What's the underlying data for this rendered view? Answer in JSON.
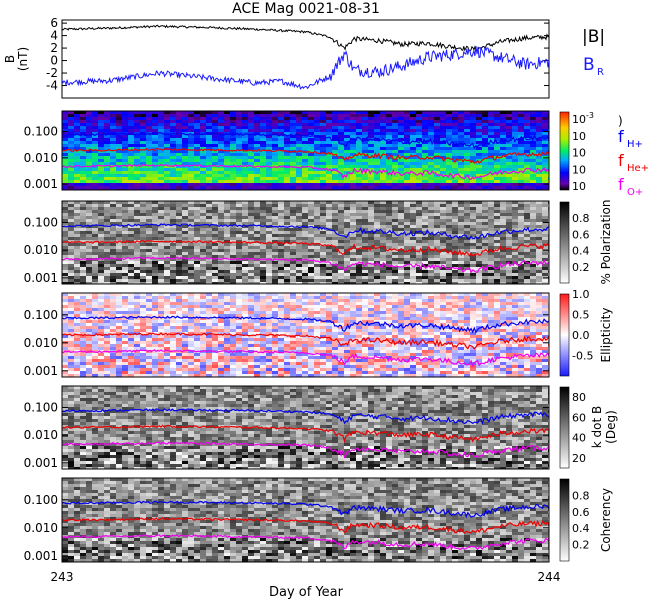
{
  "title": "ACE Mag 0021-08-31",
  "xlabel": "Day of Year",
  "x_ticks": [
    "243",
    "244"
  ],
  "x_range": [
    243,
    244
  ],
  "colors": {
    "total_field": "#000000",
    "radial_field": "#1a1aff",
    "f_h": "#0000ee",
    "f_he": "#ee0000",
    "f_o": "#ee00ee",
    "spectrogram_cmap": "rainbow",
    "parameter_cmap": "grayscale",
    "ellipticity_cmap": "blue-white-red"
  },
  "legend": {
    "b_total": "|B|",
    "b_r_main": "B",
    "b_r_sub": "R",
    "f_h_main": "f",
    "f_h_sub": "H+",
    "f_he_main": "f",
    "f_he_sub": "He+",
    "f_o_main": "f",
    "f_o_sub": "O+"
  },
  "chart_data": [
    {
      "type": "line",
      "panel": "magnetic-field",
      "ylabel": "B",
      "yunit": "(nT)",
      "y_ticks": [
        "6",
        "4",
        "2",
        "0",
        "-2",
        "-4"
      ],
      "ylim": [
        -6,
        6.5
      ],
      "x_range": [
        243,
        244
      ],
      "series": [
        {
          "name": "|B|",
          "x": [
            243.0,
            243.1,
            243.2,
            243.3,
            243.4,
            243.5,
            243.55,
            243.58,
            243.6,
            243.65,
            243.7,
            243.75,
            243.8,
            243.85,
            243.9,
            243.95,
            244.0
          ],
          "values": [
            5.0,
            5.2,
            5.5,
            5.3,
            5.0,
            4.6,
            3.8,
            2.0,
            3.5,
            3.2,
            2.6,
            2.8,
            2.2,
            1.8,
            3.0,
            3.6,
            3.8
          ]
        },
        {
          "name": "B_R",
          "x": [
            243.0,
            243.1,
            243.2,
            243.3,
            243.4,
            243.45,
            243.5,
            243.55,
            243.58,
            243.6,
            243.65,
            243.7,
            243.75,
            243.8,
            243.85,
            243.9,
            243.95,
            244.0
          ],
          "values": [
            -3.5,
            -3.2,
            -2.0,
            -2.8,
            -3.6,
            -3.3,
            -4.3,
            -2.5,
            1.2,
            -1.5,
            -1.8,
            -0.8,
            0.5,
            1.0,
            1.6,
            0.5,
            -0.6,
            -0.2
          ]
        }
      ]
    },
    {
      "type": "heatmap",
      "panel": "power-spectrum",
      "y_ticks": [
        "0.100",
        "0.010",
        "0.001"
      ],
      "ylim_log": [
        0.0006,
        0.6
      ],
      "colorbar_ticks": [
        "10^-3",
        "10^",
        "10^",
        "10^",
        "10^"
      ]
    },
    {
      "type": "heatmap",
      "panel": "polarization",
      "y_ticks": [
        "0.100",
        "0.010",
        "0.001"
      ],
      "ylim_log": [
        0.0006,
        0.6
      ],
      "colorbar_label": "% Polarization",
      "colorbar_ticks": [
        "0.8",
        "0.6",
        "0.4",
        "0.2"
      ],
      "colorbar_range": [
        0,
        1
      ]
    },
    {
      "type": "heatmap",
      "panel": "ellipticity",
      "y_ticks": [
        "0.100",
        "0.010",
        "0.001"
      ],
      "ylim_log": [
        0.0006,
        0.6
      ],
      "colorbar_label": "Ellipticity",
      "colorbar_ticks": [
        "1.0",
        "0.5",
        "0.0",
        "-0.5"
      ],
      "colorbar_range": [
        -1,
        1
      ]
    },
    {
      "type": "heatmap",
      "panel": "k-dot-b",
      "y_ticks": [
        "0.100",
        "0.010",
        "0.001"
      ],
      "ylim_log": [
        0.0006,
        0.6
      ],
      "colorbar_label": "k dot B",
      "colorbar_unit": "(Deg)",
      "colorbar_ticks": [
        "80",
        "60",
        "40",
        "20"
      ],
      "colorbar_range": [
        10,
        90
      ]
    },
    {
      "type": "heatmap",
      "panel": "coherency",
      "y_ticks": [
        "0.100",
        "0.010",
        "0.001"
      ],
      "ylim_log": [
        0.0006,
        0.6
      ],
      "colorbar_label": "Coherency",
      "colorbar_ticks": [
        "0.8",
        "0.6",
        "0.4",
        "0.2"
      ],
      "colorbar_range": [
        0,
        1
      ]
    }
  ],
  "gyro_frequencies": {
    "x": [
      243.0,
      243.1,
      243.2,
      243.3,
      243.4,
      243.5,
      243.55,
      243.58,
      243.6,
      243.65,
      243.7,
      243.75,
      243.8,
      243.85,
      243.9,
      243.95,
      244.0
    ],
    "f_h": [
      0.075,
      0.078,
      0.083,
      0.08,
      0.076,
      0.07,
      0.058,
      0.03,
      0.052,
      0.048,
      0.04,
      0.043,
      0.034,
      0.028,
      0.045,
      0.055,
      0.058
    ],
    "f_he": [
      0.019,
      0.0195,
      0.021,
      0.02,
      0.019,
      0.0175,
      0.0145,
      0.0075,
      0.013,
      0.012,
      0.01,
      0.0108,
      0.0085,
      0.007,
      0.0113,
      0.0138,
      0.0145
    ],
    "f_o": [
      0.0047,
      0.0049,
      0.0052,
      0.005,
      0.0047,
      0.0044,
      0.0036,
      0.0019,
      0.0033,
      0.003,
      0.0025,
      0.0027,
      0.0021,
      0.0018,
      0.0028,
      0.0034,
      0.0036
    ]
  }
}
